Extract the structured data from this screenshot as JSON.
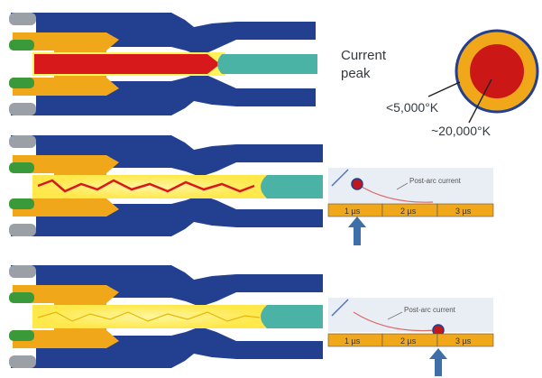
{
  "labels": {
    "current_peak_line1": "Current",
    "current_peak_line2": "peak",
    "temp_outer": "<5,000°K",
    "temp_inner": "~20,000°K"
  },
  "panel2_graph": {
    "caption": "Post-arc current",
    "ticks": [
      "1 µs",
      "2 µs",
      "3 µs"
    ]
  },
  "panel3_graph": {
    "caption": "Post-arc current",
    "ticks": [
      "1 µs",
      "2 µs",
      "3 µs"
    ]
  },
  "colors": {
    "nozzle_blue": "#233f8f",
    "contact_orange": "#f0a71a",
    "arc_red": "#d7191c",
    "arc_yellow": "#fff35a",
    "contact_teal": "#4bb3a6",
    "marker_blue": "#3e6fa8",
    "contact_grey": "#9aa0a6",
    "contact_green": "#3a9a3a"
  }
}
